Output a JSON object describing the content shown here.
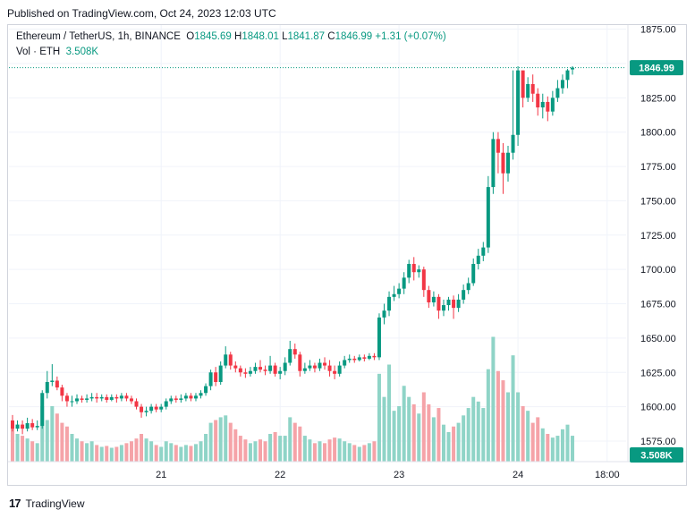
{
  "header": {
    "published": "Published on TradingView.com, Oct 24, 2023 12:03 UTC"
  },
  "legend": {
    "symbol": "Ethereum / TetherUS, 1h, BINANCE",
    "o_label": "O",
    "o": "1845.69",
    "h_label": "H",
    "h": "1848.01",
    "l_label": "L",
    "l": "1841.87",
    "c_label": "C",
    "c": "1846.99",
    "change": "+1.31 (+0.07%)",
    "vol_label": "Vol · ETH",
    "vol": "3.508K"
  },
  "price_tag": "1846.99",
  "volume_tag": "3.508K",
  "footer": {
    "brand": "TradingView"
  },
  "colors": {
    "up": "#089981",
    "down": "#f23645",
    "vol_up": "#8fd4c7",
    "vol_down": "#f5a3a8",
    "grid": "#f0f3fa"
  },
  "chart_data": {
    "type": "candlestick",
    "y_ticks": [
      1575,
      1600,
      1625,
      1650,
      1675,
      1700,
      1725,
      1750,
      1775,
      1800,
      1825,
      1850,
      1875
    ],
    "y_tick_labels": [
      "1575.00",
      "1600.00",
      "1625.00",
      "1650.00",
      "1675.00",
      "1700.00",
      "1725.00",
      "1750.00",
      "1775.00",
      "1800.00",
      "1825.00",
      "1850.00",
      "1875.00"
    ],
    "ylim": [
      1560,
      1878
    ],
    "x_tick_labels": [
      "21",
      "22",
      "23",
      "24",
      "18:00"
    ],
    "x_tick_hours": [
      30,
      54,
      78,
      102,
      120
    ],
    "last_price": 1846.99,
    "volume_max": 120,
    "candles": [
      [
        1590,
        1584,
        1594,
        1582,
        40
      ],
      [
        1584,
        1587,
        1590,
        1582,
        30
      ],
      [
        1587,
        1584,
        1590,
        1580,
        28
      ],
      [
        1584,
        1588,
        1592,
        1582,
        25
      ],
      [
        1588,
        1585,
        1591,
        1583,
        22
      ],
      [
        1585,
        1586,
        1590,
        1583,
        20
      ],
      [
        1586,
        1610,
        1612,
        1584,
        60
      ],
      [
        1610,
        1618,
        1626,
        1606,
        45
      ],
      [
        1618,
        1619,
        1631,
        1615,
        60
      ],
      [
        1619,
        1614,
        1622,
        1612,
        52
      ],
      [
        1614,
        1608,
        1616,
        1604,
        42
      ],
      [
        1608,
        1604,
        1610,
        1600,
        38
      ],
      [
        1604,
        1604,
        1608,
        1600,
        30
      ],
      [
        1604,
        1606,
        1609,
        1602,
        25
      ],
      [
        1606,
        1605,
        1608,
        1603,
        22
      ],
      [
        1605,
        1606,
        1609,
        1603,
        20
      ],
      [
        1606,
        1607,
        1610,
        1604,
        22
      ],
      [
        1607,
        1606,
        1610,
        1603,
        18
      ],
      [
        1606,
        1607,
        1609,
        1604,
        16
      ],
      [
        1607,
        1605,
        1609,
        1603,
        17
      ],
      [
        1605,
        1607,
        1609,
        1604,
        15
      ],
      [
        1607,
        1606,
        1609,
        1603,
        16
      ],
      [
        1606,
        1608,
        1610,
        1604,
        18
      ],
      [
        1608,
        1606,
        1610,
        1604,
        20
      ],
      [
        1606,
        1604,
        1608,
        1602,
        22
      ],
      [
        1604,
        1600,
        1606,
        1598,
        25
      ],
      [
        1600,
        1596,
        1602,
        1592,
        30
      ],
      [
        1596,
        1597,
        1600,
        1593,
        25
      ],
      [
        1597,
        1600,
        1602,
        1595,
        22
      ],
      [
        1600,
        1598,
        1602,
        1596,
        18
      ],
      [
        1598,
        1600,
        1602,
        1596,
        16
      ],
      [
        1600,
        1604,
        1606,
        1598,
        22
      ],
      [
        1604,
        1606,
        1608,
        1602,
        20
      ],
      [
        1606,
        1605,
        1608,
        1603,
        18
      ],
      [
        1605,
        1606,
        1609,
        1603,
        16
      ],
      [
        1606,
        1608,
        1610,
        1604,
        18
      ],
      [
        1608,
        1606,
        1610,
        1604,
        17
      ],
      [
        1606,
        1608,
        1610,
        1604,
        19
      ],
      [
        1608,
        1610,
        1612,
        1606,
        22
      ],
      [
        1610,
        1615,
        1617,
        1608,
        30
      ],
      [
        1615,
        1625,
        1627,
        1612,
        42
      ],
      [
        1625,
        1618,
        1629,
        1615,
        45
      ],
      [
        1618,
        1630,
        1633,
        1616,
        48
      ],
      [
        1630,
        1638,
        1644,
        1628,
        50
      ],
      [
        1638,
        1630,
        1640,
        1627,
        42
      ],
      [
        1630,
        1628,
        1633,
        1625,
        35
      ],
      [
        1628,
        1625,
        1630,
        1622,
        28
      ],
      [
        1625,
        1624,
        1628,
        1621,
        24
      ],
      [
        1624,
        1626,
        1629,
        1622,
        20
      ],
      [
        1626,
        1629,
        1632,
        1624,
        22
      ],
      [
        1629,
        1627,
        1634,
        1625,
        24
      ],
      [
        1627,
        1626,
        1630,
        1623,
        22
      ],
      [
        1626,
        1630,
        1637,
        1624,
        30
      ],
      [
        1630,
        1624,
        1632,
        1622,
        32
      ],
      [
        1624,
        1626,
        1629,
        1620,
        28
      ],
      [
        1626,
        1632,
        1636,
        1623,
        28
      ],
      [
        1632,
        1642,
        1648,
        1630,
        48
      ],
      [
        1642,
        1638,
        1646,
        1635,
        42
      ],
      [
        1638,
        1626,
        1640,
        1622,
        38
      ],
      [
        1626,
        1628,
        1632,
        1624,
        28
      ],
      [
        1628,
        1630,
        1634,
        1626,
        24
      ],
      [
        1630,
        1628,
        1632,
        1625,
        20
      ],
      [
        1628,
        1632,
        1635,
        1626,
        22
      ],
      [
        1632,
        1630,
        1636,
        1627,
        20
      ],
      [
        1630,
        1626,
        1634,
        1622,
        24
      ],
      [
        1626,
        1624,
        1630,
        1620,
        26
      ],
      [
        1624,
        1630,
        1633,
        1622,
        25
      ],
      [
        1630,
        1634,
        1637,
        1628,
        22
      ],
      [
        1634,
        1635,
        1638,
        1632,
        20
      ],
      [
        1635,
        1634,
        1637,
        1632,
        18
      ],
      [
        1634,
        1636,
        1638,
        1633,
        16
      ],
      [
        1636,
        1635,
        1638,
        1633,
        18
      ],
      [
        1635,
        1637,
        1639,
        1634,
        20
      ],
      [
        1637,
        1636,
        1639,
        1634,
        22
      ],
      [
        1636,
        1665,
        1668,
        1634,
        95
      ],
      [
        1665,
        1670,
        1675,
        1660,
        70
      ],
      [
        1670,
        1680,
        1684,
        1666,
        105
      ],
      [
        1680,
        1682,
        1688,
        1677,
        55
      ],
      [
        1682,
        1686,
        1690,
        1679,
        60
      ],
      [
        1686,
        1694,
        1698,
        1682,
        82
      ],
      [
        1694,
        1704,
        1707,
        1690,
        70
      ],
      [
        1704,
        1698,
        1709,
        1692,
        62
      ],
      [
        1698,
        1700,
        1703,
        1694,
        52
      ],
      [
        1700,
        1685,
        1702,
        1680,
        75
      ],
      [
        1685,
        1676,
        1688,
        1672,
        62
      ],
      [
        1676,
        1680,
        1684,
        1673,
        48
      ],
      [
        1680,
        1670,
        1682,
        1664,
        58
      ],
      [
        1670,
        1674,
        1678,
        1666,
        40
      ],
      [
        1674,
        1678,
        1680,
        1670,
        32
      ],
      [
        1678,
        1672,
        1681,
        1664,
        38
      ],
      [
        1672,
        1678,
        1682,
        1669,
        42
      ],
      [
        1678,
        1685,
        1689,
        1675,
        50
      ],
      [
        1685,
        1690,
        1694,
        1682,
        58
      ],
      [
        1690,
        1704,
        1708,
        1688,
        70
      ],
      [
        1704,
        1710,
        1715,
        1700,
        65
      ],
      [
        1710,
        1716,
        1720,
        1706,
        58
      ],
      [
        1716,
        1760,
        1768,
        1712,
        100
      ],
      [
        1760,
        1795,
        1800,
        1755,
        135
      ],
      [
        1795,
        1785,
        1800,
        1770,
        98
      ],
      [
        1785,
        1770,
        1792,
        1755,
        88
      ],
      [
        1770,
        1785,
        1790,
        1764,
        75
      ],
      [
        1785,
        1798,
        1845,
        1780,
        115
      ],
      [
        1798,
        1845,
        1848,
        1790,
        75
      ],
      [
        1845,
        1825,
        1840,
        1818,
        60
      ],
      [
        1825,
        1835,
        1840,
        1822,
        55
      ],
      [
        1835,
        1828,
        1842,
        1822,
        42
      ],
      [
        1828,
        1818,
        1832,
        1812,
        48
      ],
      [
        1818,
        1822,
        1828,
        1810,
        36
      ],
      [
        1822,
        1815,
        1826,
        1808,
        30
      ],
      [
        1815,
        1825,
        1830,
        1812,
        26
      ],
      [
        1825,
        1832,
        1838,
        1822,
        28
      ],
      [
        1832,
        1838,
        1842,
        1828,
        35
      ],
      [
        1838,
        1845,
        1846,
        1832,
        40
      ],
      [
        1845.69,
        1846.99,
        1848.01,
        1841.87,
        28
      ]
    ]
  }
}
